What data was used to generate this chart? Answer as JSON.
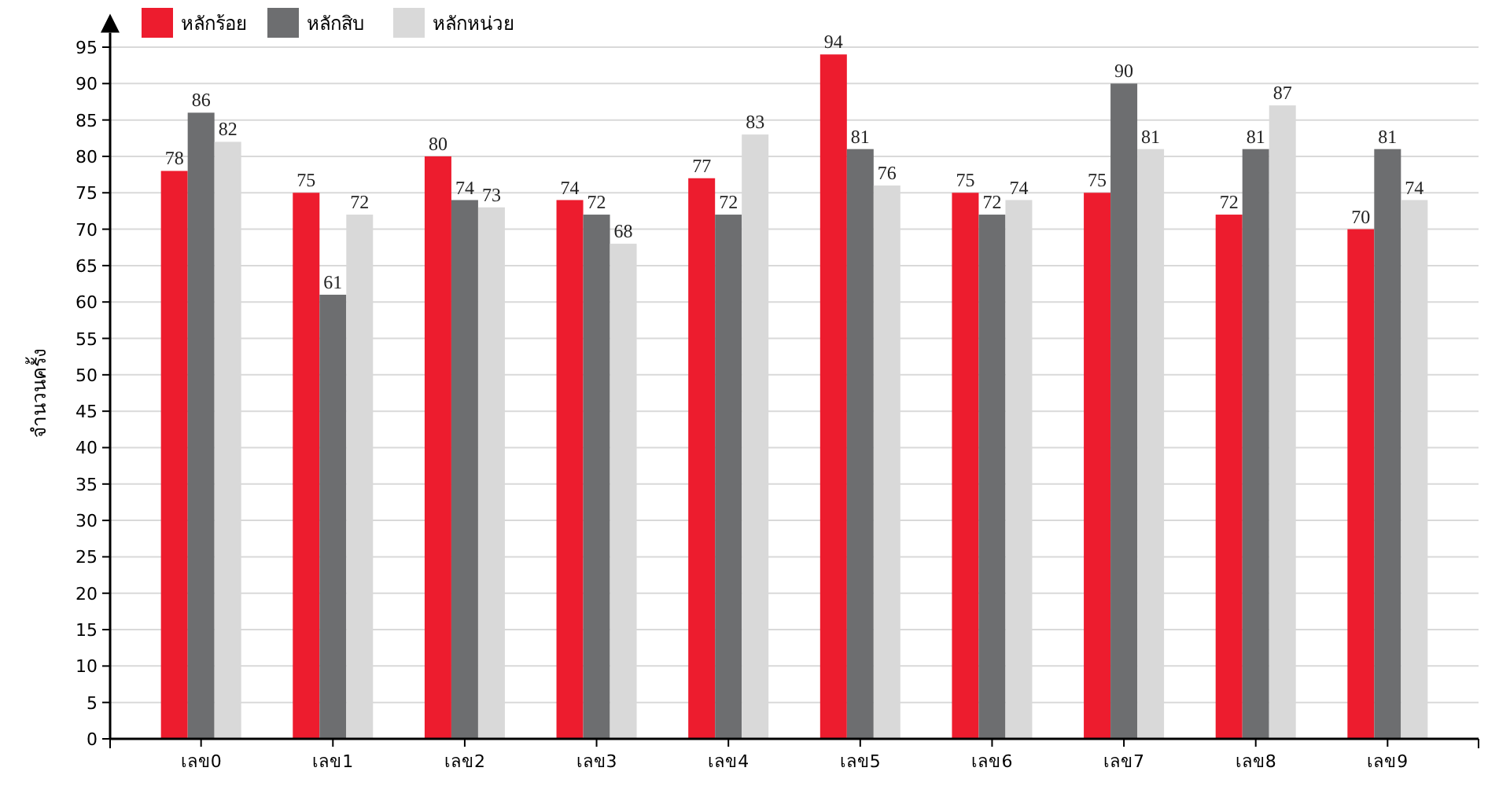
{
  "chart_data": {
    "type": "bar",
    "ylabel": "จำนวนครั้ง",
    "categories": [
      "เลข0",
      "เลข1",
      "เลข2",
      "เลข3",
      "เลข4",
      "เลข5",
      "เลข6",
      "เลข7",
      "เลข8",
      "เลข9"
    ],
    "series": [
      {
        "name": "หลักร้อย",
        "color": "#ed1c2e",
        "values": [
          78,
          75,
          80,
          74,
          77,
          94,
          75,
          75,
          72,
          70
        ]
      },
      {
        "name": "หลักสิบ",
        "color": "#6d6e70",
        "values": [
          86,
          61,
          74,
          72,
          72,
          81,
          72,
          90,
          81,
          81
        ]
      },
      {
        "name": "หลักหน่วย",
        "color": "#d9d9d9",
        "values": [
          82,
          72,
          73,
          68,
          83,
          76,
          74,
          81,
          87,
          74
        ]
      }
    ],
    "ylim": [
      0,
      97
    ],
    "yticks": [
      0,
      5,
      10,
      15,
      20,
      25,
      30,
      35,
      40,
      45,
      50,
      55,
      60,
      65,
      70,
      75,
      80,
      85,
      90,
      95
    ],
    "grid": "y",
    "legend": "top left",
    "data_labels": true
  }
}
